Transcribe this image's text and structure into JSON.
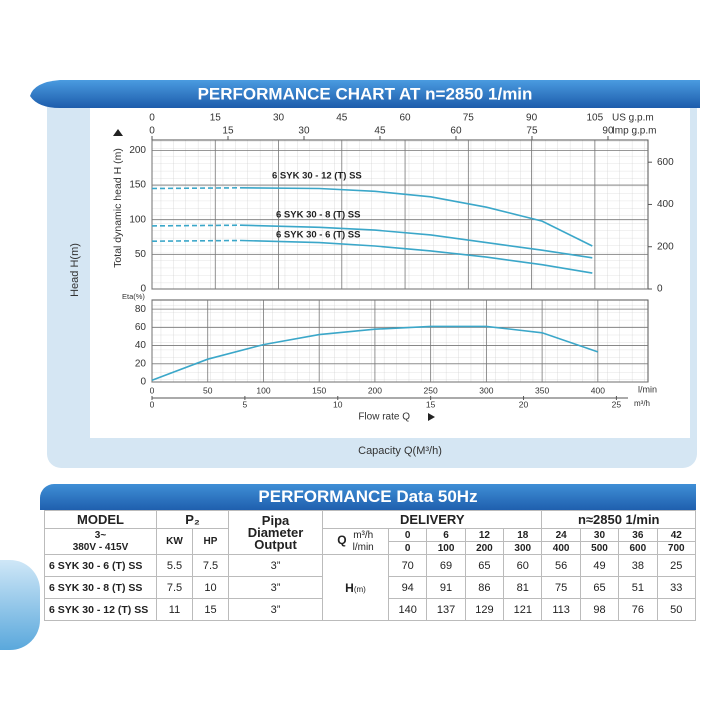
{
  "chart_panel": {
    "title": "PERFORMANCE CHART AT n=2850 1/min",
    "side_label": "Head H(m)",
    "bottom_label": "Capacity Q(M³/h)"
  },
  "chart_data": [
    {
      "type": "line",
      "y_label": "Total dynamic head H (m)",
      "top_axes": [
        {
          "label": "US g.p.m",
          "xlim": [
            0,
            117.6
          ],
          "xticks": [
            0,
            15,
            30,
            45,
            60,
            75,
            90,
            105
          ]
        },
        {
          "label": "Imp g.p.m",
          "xlim": [
            0,
            97.9
          ],
          "xticks": [
            0,
            15,
            30,
            45,
            60,
            75,
            90
          ]
        }
      ],
      "xlim": [
        0,
        445
      ],
      "x": [
        0,
        80,
        150,
        200,
        250,
        300,
        350,
        395
      ],
      "ylim": [
        0,
        215
      ],
      "yticks": [
        0,
        50,
        100,
        150,
        200
      ],
      "y2lim": [
        0,
        705
      ],
      "y2ticks": [
        0,
        200,
        400,
        600
      ],
      "grid": true,
      "leading_segment_dashed": true,
      "series": [
        {
          "name": "6 SYK 30 - 12 (T) SS",
          "color": "#3ba7c9",
          "values": [
            145,
            146,
            145,
            141,
            133,
            118,
            98,
            62
          ]
        },
        {
          "name": "6 SYK 30 - 8 (T) SS",
          "color": "#3ba7c9",
          "values": [
            91,
            92,
            89,
            85,
            78,
            67,
            56,
            45
          ]
        },
        {
          "name": "6 SYK 30 - 6 (T) SS",
          "color": "#3ba7c9",
          "values": [
            69,
            70,
            67,
            62,
            55,
            46,
            35,
            23
          ]
        }
      ]
    },
    {
      "type": "line",
      "y_label": "Eta(%)",
      "x_label": "l/min",
      "x_title": "Flow rate Q",
      "xlim": [
        0,
        445
      ],
      "xticks": [
        0,
        50,
        100,
        150,
        200,
        250,
        300,
        350,
        400
      ],
      "second_x": {
        "label": "m³/h",
        "xlim": [
          0,
          26.7
        ],
        "xticks": [
          0,
          5,
          10,
          15,
          20,
          25
        ]
      },
      "ylim": [
        0,
        90
      ],
      "yticks": [
        0,
        20,
        40,
        60,
        80
      ],
      "grid": true,
      "x": [
        0,
        50,
        100,
        150,
        200,
        250,
        300,
        350,
        400
      ],
      "series": [
        {
          "color": "#3ba7c9",
          "values": [
            2,
            25,
            41,
            52,
            58,
            61,
            61,
            54,
            33
          ]
        }
      ]
    }
  ],
  "table": {
    "title": "PERFORMANCE Data 50Hz",
    "model_header": "MODEL",
    "voltage": [
      "3~",
      "380V - 415V"
    ],
    "p2_header": "P₂",
    "kw_header": "KW",
    "hp_header": "HP",
    "pipe_header": [
      "Pipa",
      "Diameter",
      "Output"
    ],
    "delivery_header": "DELIVERY",
    "speed": "n≈2850 1/min",
    "q_label": "Q",
    "q_units": [
      "m³/h",
      "l/min"
    ],
    "q_m3h": [
      0,
      6,
      12,
      18,
      24,
      30,
      36,
      42
    ],
    "q_lmin": [
      0,
      100,
      200,
      300,
      400,
      500,
      600,
      700
    ],
    "h_label": "H",
    "h_unit": "(m)",
    "rows": [
      {
        "model": "6 SYK 30 - 6 (T)  SS",
        "kw": 5.5,
        "hp": 7.5,
        "pipe": "3”",
        "head": [
          70,
          69,
          65,
          60,
          56,
          49,
          38,
          25
        ]
      },
      {
        "model": "6 SYK 30 - 8 (T)  SS",
        "kw": 7.5,
        "hp": 10,
        "pipe": "3”",
        "head": [
          94,
          91,
          86,
          81,
          75,
          65,
          51,
          33
        ]
      },
      {
        "model": "6 SYK 30 - 12 (T)  SS",
        "kw": 11,
        "hp": 15,
        "pipe": "3”",
        "head": [
          140,
          137,
          129,
          121,
          113,
          98,
          76,
          50
        ]
      }
    ]
  }
}
